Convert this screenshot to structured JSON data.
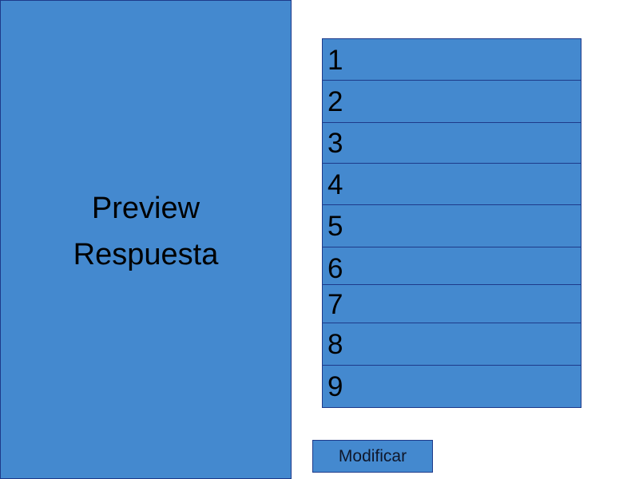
{
  "preview": {
    "title": "Preview\nRespuesta"
  },
  "list": {
    "items": [
      {
        "label": "1"
      },
      {
        "label": "2"
      },
      {
        "label": "3"
      },
      {
        "label": "4"
      },
      {
        "label": "5"
      },
      {
        "label": "6"
      },
      {
        "label": "7"
      },
      {
        "label": "8"
      },
      {
        "label": "9"
      }
    ]
  },
  "actions": {
    "modify_label": "Modificar"
  },
  "colors": {
    "panel_fill": "#4489cf",
    "border": "#1e3a8a",
    "background": "#ffffff"
  }
}
